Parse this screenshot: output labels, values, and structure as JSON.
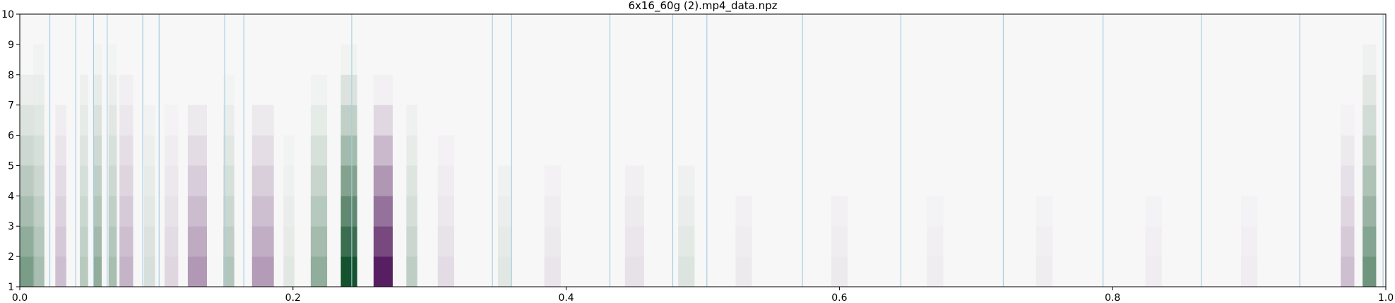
{
  "chart_data": {
    "type": "heatmap",
    "title": "6x16_60g (2).mp4_data.npz",
    "xlabel": "",
    "ylabel": "",
    "xlim": [
      0.0,
      1.0
    ],
    "ylim": [
      1,
      10
    ],
    "x_ticks": [
      "0.0",
      "0.2",
      "0.4",
      "0.6",
      "0.8",
      "1.0"
    ],
    "y_ticks": [
      "1",
      "2",
      "3",
      "4",
      "5",
      "6",
      "7",
      "8",
      "9",
      "10"
    ],
    "colormap": "PRGn",
    "colors": {
      "negative": "#40004b",
      "neutral": "#f7f7f7",
      "positive": "#00441b",
      "marker_line": "#a6cee3"
    },
    "vertical_markers": [
      0.0,
      0.022,
      0.041,
      0.054,
      0.064,
      0.09,
      0.102,
      0.15,
      0.164,
      0.243,
      0.346,
      0.36,
      0.432,
      0.478,
      0.503,
      0.573,
      0.645,
      0.72,
      0.793,
      0.865,
      0.937,
      0.998
    ],
    "bands": [
      {
        "x": 0.005,
        "width": 0.012,
        "value": 0.55,
        "top_row": 8.2
      },
      {
        "x": 0.014,
        "width": 0.008,
        "value": 0.35,
        "top_row": 9.2
      },
      {
        "x": 0.03,
        "width": 0.008,
        "value": -0.25,
        "top_row": 8.0
      },
      {
        "x": 0.047,
        "width": 0.006,
        "value": 0.28,
        "top_row": 9.0
      },
      {
        "x": 0.057,
        "width": 0.006,
        "value": 0.45,
        "top_row": 9.0
      },
      {
        "x": 0.068,
        "width": 0.006,
        "value": 0.35,
        "top_row": 9.0
      },
      {
        "x": 0.078,
        "width": 0.01,
        "value": -0.3,
        "top_row": 8.5
      },
      {
        "x": 0.095,
        "width": 0.008,
        "value": 0.15,
        "top_row": 8.0
      },
      {
        "x": 0.111,
        "width": 0.01,
        "value": -0.15,
        "top_row": 7.5
      },
      {
        "x": 0.13,
        "width": 0.014,
        "value": -0.42,
        "top_row": 7.5
      },
      {
        "x": 0.153,
        "width": 0.008,
        "value": 0.3,
        "top_row": 8.0
      },
      {
        "x": 0.178,
        "width": 0.016,
        "value": -0.4,
        "top_row": 7.5
      },
      {
        "x": 0.197,
        "width": 0.008,
        "value": 0.1,
        "top_row": 7.0
      },
      {
        "x": 0.219,
        "width": 0.012,
        "value": 0.45,
        "top_row": 7.8
      },
      {
        "x": 0.241,
        "width": 0.012,
        "value": 1.0,
        "top_row": 8.5
      },
      {
        "x": 0.266,
        "width": 0.014,
        "value": -0.95,
        "top_row": 7.5
      },
      {
        "x": 0.287,
        "width": 0.008,
        "value": 0.25,
        "top_row": 7.5
      },
      {
        "x": 0.312,
        "width": 0.012,
        "value": -0.12,
        "top_row": 7.0
      },
      {
        "x": 0.355,
        "width": 0.01,
        "value": 0.1,
        "top_row": 6.5
      },
      {
        "x": 0.39,
        "width": 0.012,
        "value": -0.08,
        "top_row": 6.5
      },
      {
        "x": 0.45,
        "width": 0.014,
        "value": -0.1,
        "top_row": 6.5
      },
      {
        "x": 0.488,
        "width": 0.012,
        "value": 0.12,
        "top_row": 6.0
      },
      {
        "x": 0.53,
        "width": 0.012,
        "value": -0.06,
        "top_row": 6.0
      },
      {
        "x": 0.6,
        "width": 0.012,
        "value": -0.06,
        "top_row": 6.0
      },
      {
        "x": 0.67,
        "width": 0.012,
        "value": -0.05,
        "top_row": 6.0
      },
      {
        "x": 0.75,
        "width": 0.012,
        "value": -0.05,
        "top_row": 6.0
      },
      {
        "x": 0.83,
        "width": 0.012,
        "value": -0.05,
        "top_row": 6.0
      },
      {
        "x": 0.9,
        "width": 0.012,
        "value": -0.05,
        "top_row": 6.0
      },
      {
        "x": 0.972,
        "width": 0.01,
        "value": -0.25,
        "top_row": 7.0
      },
      {
        "x": 0.988,
        "width": 0.01,
        "value": 0.6,
        "top_row": 9.0
      }
    ]
  }
}
